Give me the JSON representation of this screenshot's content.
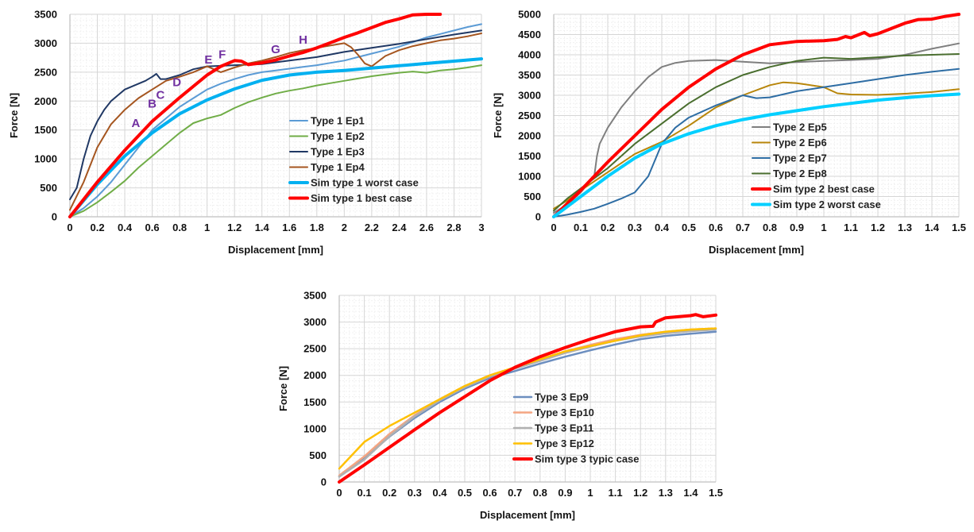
{
  "chart_data": [
    {
      "type": "line",
      "xlabel": "Displacement [mm]",
      "ylabel": "Force [N]",
      "xlim": [
        0,
        3
      ],
      "ylim": [
        0,
        3500
      ],
      "xticks": [
        "0",
        "0.2",
        "0.4",
        "0.6",
        "0.8",
        "1",
        "1.2",
        "1.4",
        "1.6",
        "1.8",
        "2",
        "2.2",
        "2.4",
        "2.6",
        "2.8",
        "3"
      ],
      "yticks": [
        "0",
        "500",
        "1000",
        "1500",
        "2000",
        "2500",
        "3000",
        "3500"
      ],
      "grid": "major and minor",
      "legend_position": "center-right",
      "series": [
        {
          "name": "Type 1 Ep1",
          "color": "#5b9bd5",
          "width": 2,
          "x": [
            0,
            0.1,
            0.2,
            0.3,
            0.4,
            0.5,
            0.6,
            0.7,
            0.8,
            0.9,
            1.0,
            1.1,
            1.2,
            1.3,
            1.4,
            1.5,
            1.6,
            1.7,
            1.8,
            1.9,
            2.0,
            2.1,
            2.2,
            2.3,
            2.4,
            2.5,
            2.6,
            2.7,
            2.8,
            2.9,
            3.0
          ],
          "y": [
            0,
            150,
            350,
            600,
            900,
            1200,
            1500,
            1700,
            1900,
            2050,
            2200,
            2300,
            2380,
            2450,
            2500,
            2530,
            2560,
            2590,
            2620,
            2660,
            2700,
            2760,
            2820,
            2880,
            2940,
            3020,
            3100,
            3160,
            3220,
            3280,
            3330
          ]
        },
        {
          "name": "Type 1 Ep2",
          "color": "#70ad47",
          "width": 2,
          "x": [
            0,
            0.1,
            0.2,
            0.3,
            0.4,
            0.5,
            0.6,
            0.7,
            0.8,
            0.9,
            1.0,
            1.1,
            1.2,
            1.3,
            1.4,
            1.5,
            1.6,
            1.7,
            1.8,
            1.9,
            2.0,
            2.1,
            2.2,
            2.3,
            2.4,
            2.5,
            2.6,
            2.7,
            2.8,
            2.9,
            3.0
          ],
          "y": [
            0,
            100,
            250,
            430,
            620,
            850,
            1050,
            1250,
            1450,
            1620,
            1700,
            1760,
            1880,
            1980,
            2060,
            2130,
            2180,
            2220,
            2270,
            2310,
            2350,
            2390,
            2430,
            2460,
            2490,
            2510,
            2490,
            2530,
            2550,
            2580,
            2620
          ]
        },
        {
          "name": "Type 1 Ep3",
          "color": "#203864",
          "width": 2,
          "x": [
            0,
            0.05,
            0.1,
            0.15,
            0.2,
            0.25,
            0.3,
            0.35,
            0.4,
            0.45,
            0.5,
            0.55,
            0.6,
            0.63,
            0.66,
            0.7,
            0.8,
            0.9,
            1.0,
            1.2,
            1.4,
            1.6,
            1.8,
            2.0,
            2.2,
            2.4,
            2.6,
            2.8,
            3.0
          ],
          "y": [
            300,
            500,
            1000,
            1400,
            1650,
            1850,
            2000,
            2100,
            2200,
            2250,
            2300,
            2350,
            2420,
            2470,
            2380,
            2380,
            2450,
            2550,
            2600,
            2620,
            2640,
            2700,
            2760,
            2850,
            2920,
            2990,
            3070,
            3150,
            3220
          ]
        },
        {
          "name": "Type 1 Ep4",
          "color": "#a5551f",
          "width": 2,
          "x": [
            0,
            0.1,
            0.2,
            0.3,
            0.4,
            0.5,
            0.6,
            0.7,
            0.8,
            0.9,
            1.0,
            1.1,
            1.2,
            1.3,
            1.4,
            1.5,
            1.6,
            1.7,
            1.8,
            1.9,
            2.0,
            2.05,
            2.1,
            2.15,
            2.2,
            2.3,
            2.4,
            2.5,
            2.6,
            2.7,
            2.8,
            2.9,
            3.0
          ],
          "y": [
            120,
            600,
            1200,
            1600,
            1850,
            2050,
            2200,
            2350,
            2420,
            2500,
            2600,
            2500,
            2580,
            2650,
            2700,
            2760,
            2830,
            2880,
            2920,
            2960,
            3000,
            2930,
            2800,
            2650,
            2600,
            2780,
            2880,
            2950,
            3000,
            3050,
            3080,
            3120,
            3170
          ]
        },
        {
          "name": "Sim type 1 worst case",
          "color": "#00b0f0",
          "width": 4,
          "x": [
            0,
            0.2,
            0.4,
            0.6,
            0.8,
            1.0,
            1.2,
            1.4,
            1.6,
            1.8,
            2.0,
            2.2,
            2.4,
            2.6,
            2.8,
            3.0
          ],
          "y": [
            0,
            560,
            1050,
            1450,
            1780,
            2020,
            2210,
            2360,
            2450,
            2500,
            2530,
            2570,
            2610,
            2650,
            2690,
            2730
          ]
        },
        {
          "name": "Sim type 1 best case",
          "color": "#ff0000",
          "width": 4,
          "x": [
            0,
            0.2,
            0.4,
            0.6,
            0.8,
            1.0,
            1.1,
            1.2,
            1.25,
            1.3,
            1.4,
            1.5,
            1.6,
            1.7,
            1.8,
            1.9,
            2.0,
            2.1,
            2.2,
            2.3,
            2.4,
            2.5,
            2.6,
            2.7
          ],
          "y": [
            0,
            600,
            1150,
            1650,
            2060,
            2450,
            2600,
            2700,
            2690,
            2630,
            2660,
            2710,
            2780,
            2840,
            2920,
            3010,
            3100,
            3180,
            3270,
            3360,
            3420,
            3490,
            3500,
            3500
          ]
        }
      ],
      "annotations": [
        "A",
        "B",
        "C",
        "D",
        "E",
        "F",
        "G",
        "H"
      ]
    },
    {
      "type": "line",
      "xlabel": "Displacement [mm]",
      "ylabel": "Force [N]",
      "xlim": [
        0,
        1.5
      ],
      "ylim": [
        0,
        5000
      ],
      "xticks": [
        "0",
        "0.1",
        "0.2",
        "0.3",
        "0.4",
        "0.5",
        "0.6",
        "0.7",
        "0.8",
        "0.9",
        "1",
        "1.1",
        "1.2",
        "1.3",
        "1.4",
        "1.5"
      ],
      "yticks": [
        "0",
        "500",
        "1000",
        "1500",
        "2000",
        "2500",
        "3000",
        "3500",
        "4000",
        "4500",
        "5000"
      ],
      "grid": "major and minor",
      "legend_position": "center-right",
      "series": [
        {
          "name": "Type 2 Ep5",
          "color": "#7f7f7f",
          "width": 2,
          "x": [
            0,
            0.05,
            0.1,
            0.15,
            0.16,
            0.17,
            0.2,
            0.25,
            0.3,
            0.35,
            0.4,
            0.45,
            0.5,
            0.6,
            0.7,
            0.8,
            0.9,
            1.0,
            1.1,
            1.2,
            1.3,
            1.4,
            1.5
          ],
          "y": [
            100,
            300,
            600,
            1000,
            1500,
            1800,
            2200,
            2700,
            3100,
            3450,
            3700,
            3800,
            3850,
            3870,
            3830,
            3790,
            3820,
            3850,
            3870,
            3900,
            4000,
            4150,
            4280
          ]
        },
        {
          "name": "Type 2 Ep6",
          "color": "#b8860b",
          "width": 2,
          "x": [
            0,
            0.05,
            0.1,
            0.2,
            0.3,
            0.4,
            0.5,
            0.6,
            0.7,
            0.8,
            0.85,
            0.9,
            1.0,
            1.05,
            1.1,
            1.2,
            1.3,
            1.4,
            1.5
          ],
          "y": [
            200,
            400,
            650,
            1100,
            1550,
            1850,
            2250,
            2700,
            3000,
            3250,
            3320,
            3300,
            3200,
            3050,
            3020,
            3010,
            3040,
            3080,
            3150
          ]
        },
        {
          "name": "Type 2 Ep7",
          "color": "#2e6da4",
          "width": 2,
          "x": [
            0,
            0.05,
            0.1,
            0.15,
            0.2,
            0.25,
            0.3,
            0.35,
            0.4,
            0.45,
            0.5,
            0.6,
            0.7,
            0.75,
            0.8,
            0.9,
            1.0,
            1.1,
            1.2,
            1.3,
            1.4,
            1.5
          ],
          "y": [
            0,
            50,
            120,
            200,
            320,
            450,
            600,
            1000,
            1800,
            2200,
            2450,
            2750,
            3000,
            2930,
            2950,
            3100,
            3200,
            3300,
            3400,
            3500,
            3580,
            3650
          ]
        },
        {
          "name": "Type 2 Ep8",
          "color": "#4a6e2f",
          "width": 2,
          "x": [
            0,
            0.05,
            0.1,
            0.2,
            0.3,
            0.4,
            0.5,
            0.6,
            0.7,
            0.8,
            0.9,
            1.0,
            1.1,
            1.2,
            1.3,
            1.4,
            1.5
          ],
          "y": [
            150,
            450,
            700,
            1200,
            1800,
            2300,
            2800,
            3200,
            3500,
            3700,
            3850,
            3930,
            3900,
            3940,
            3980,
            4000,
            4020
          ]
        },
        {
          "name": "Sim type 2 best case",
          "color": "#ff0000",
          "width": 4,
          "x": [
            0,
            0.1,
            0.2,
            0.3,
            0.4,
            0.5,
            0.6,
            0.7,
            0.8,
            0.9,
            1.0,
            1.05,
            1.08,
            1.1,
            1.15,
            1.17,
            1.2,
            1.3,
            1.35,
            1.4,
            1.45,
            1.5
          ],
          "y": [
            0,
            650,
            1350,
            2000,
            2650,
            3200,
            3650,
            4000,
            4250,
            4330,
            4350,
            4380,
            4450,
            4420,
            4550,
            4470,
            4520,
            4780,
            4870,
            4880,
            4950,
            5000
          ]
        },
        {
          "name": "Sim type 2 worst case",
          "color": "#00cfff",
          "width": 4,
          "x": [
            0,
            0.1,
            0.2,
            0.3,
            0.4,
            0.5,
            0.6,
            0.7,
            0.8,
            0.9,
            1.0,
            1.1,
            1.2,
            1.3,
            1.4,
            1.5
          ],
          "y": [
            0,
            500,
            1000,
            1450,
            1800,
            2050,
            2250,
            2400,
            2520,
            2620,
            2720,
            2800,
            2880,
            2940,
            2990,
            3030
          ]
        }
      ]
    },
    {
      "type": "line",
      "xlabel": "Displacement [mm]",
      "ylabel": "Force [N]",
      "xlim": [
        0,
        1.5
      ],
      "ylim": [
        0,
        3500
      ],
      "xticks": [
        "0",
        "0.1",
        "0.2",
        "0.3",
        "0.4",
        "0.5",
        "0.6",
        "0.7",
        "0.8",
        "0.9",
        "1",
        "1.1",
        "1.2",
        "1.3",
        "1.4",
        "1.5"
      ],
      "yticks": [
        "0",
        "500",
        "1000",
        "1500",
        "2000",
        "2500",
        "3000",
        "3500"
      ],
      "grid": "major and minor",
      "legend_position": "center-right",
      "series": [
        {
          "name": "Type 3 Ep9",
          "color": "#6c8ebf",
          "width": 2.5,
          "x": [
            0,
            0.1,
            0.2,
            0.3,
            0.4,
            0.5,
            0.6,
            0.7,
            0.8,
            0.9,
            1.0,
            1.1,
            1.2,
            1.3,
            1.4,
            1.5
          ],
          "y": [
            100,
            450,
            850,
            1200,
            1500,
            1750,
            1950,
            2080,
            2220,
            2350,
            2470,
            2580,
            2680,
            2740,
            2780,
            2820
          ]
        },
        {
          "name": "Type 3 Ep10",
          "color": "#f4a582",
          "width": 2.5,
          "x": [
            0,
            0.1,
            0.2,
            0.3,
            0.4,
            0.5,
            0.6,
            0.7,
            0.8,
            0.9,
            1.0,
            1.1,
            1.2,
            1.3,
            1.4,
            1.5
          ],
          "y": [
            120,
            480,
            900,
            1250,
            1550,
            1800,
            2000,
            2150,
            2300,
            2450,
            2570,
            2680,
            2760,
            2820,
            2860,
            2880
          ]
        },
        {
          "name": "Type 3 Ep11",
          "color": "#b0b0b0",
          "width": 2.5,
          "x": [
            0,
            0.1,
            0.2,
            0.3,
            0.4,
            0.5,
            0.6,
            0.7,
            0.8,
            0.9,
            1.0,
            1.1,
            1.2,
            1.3,
            1.4,
            1.5
          ],
          "y": [
            100,
            420,
            860,
            1230,
            1530,
            1780,
            1980,
            2130,
            2270,
            2420,
            2540,
            2650,
            2730,
            2790,
            2830,
            2860
          ]
        },
        {
          "name": "Type 3 Ep12",
          "color": "#ffc000",
          "width": 2.5,
          "x": [
            0,
            0.05,
            0.1,
            0.15,
            0.2,
            0.3,
            0.4,
            0.5,
            0.6,
            0.7,
            0.8,
            0.9,
            1.0,
            1.1,
            1.2,
            1.3,
            1.4,
            1.5
          ],
          "y": [
            250,
            500,
            750,
            900,
            1050,
            1300,
            1550,
            1800,
            2000,
            2150,
            2300,
            2450,
            2550,
            2650,
            2750,
            2820,
            2860,
            2880
          ]
        },
        {
          "name": "Sim type 3 typic case",
          "color": "#ff0000",
          "width": 4,
          "x": [
            0,
            0.1,
            0.2,
            0.3,
            0.4,
            0.5,
            0.6,
            0.7,
            0.8,
            0.9,
            1.0,
            1.1,
            1.2,
            1.25,
            1.26,
            1.3,
            1.35,
            1.4,
            1.42,
            1.45,
            1.5
          ],
          "y": [
            0,
            320,
            650,
            980,
            1300,
            1600,
            1900,
            2150,
            2350,
            2520,
            2680,
            2820,
            2910,
            2920,
            3000,
            3080,
            3100,
            3120,
            3140,
            3100,
            3130
          ]
        }
      ]
    }
  ]
}
